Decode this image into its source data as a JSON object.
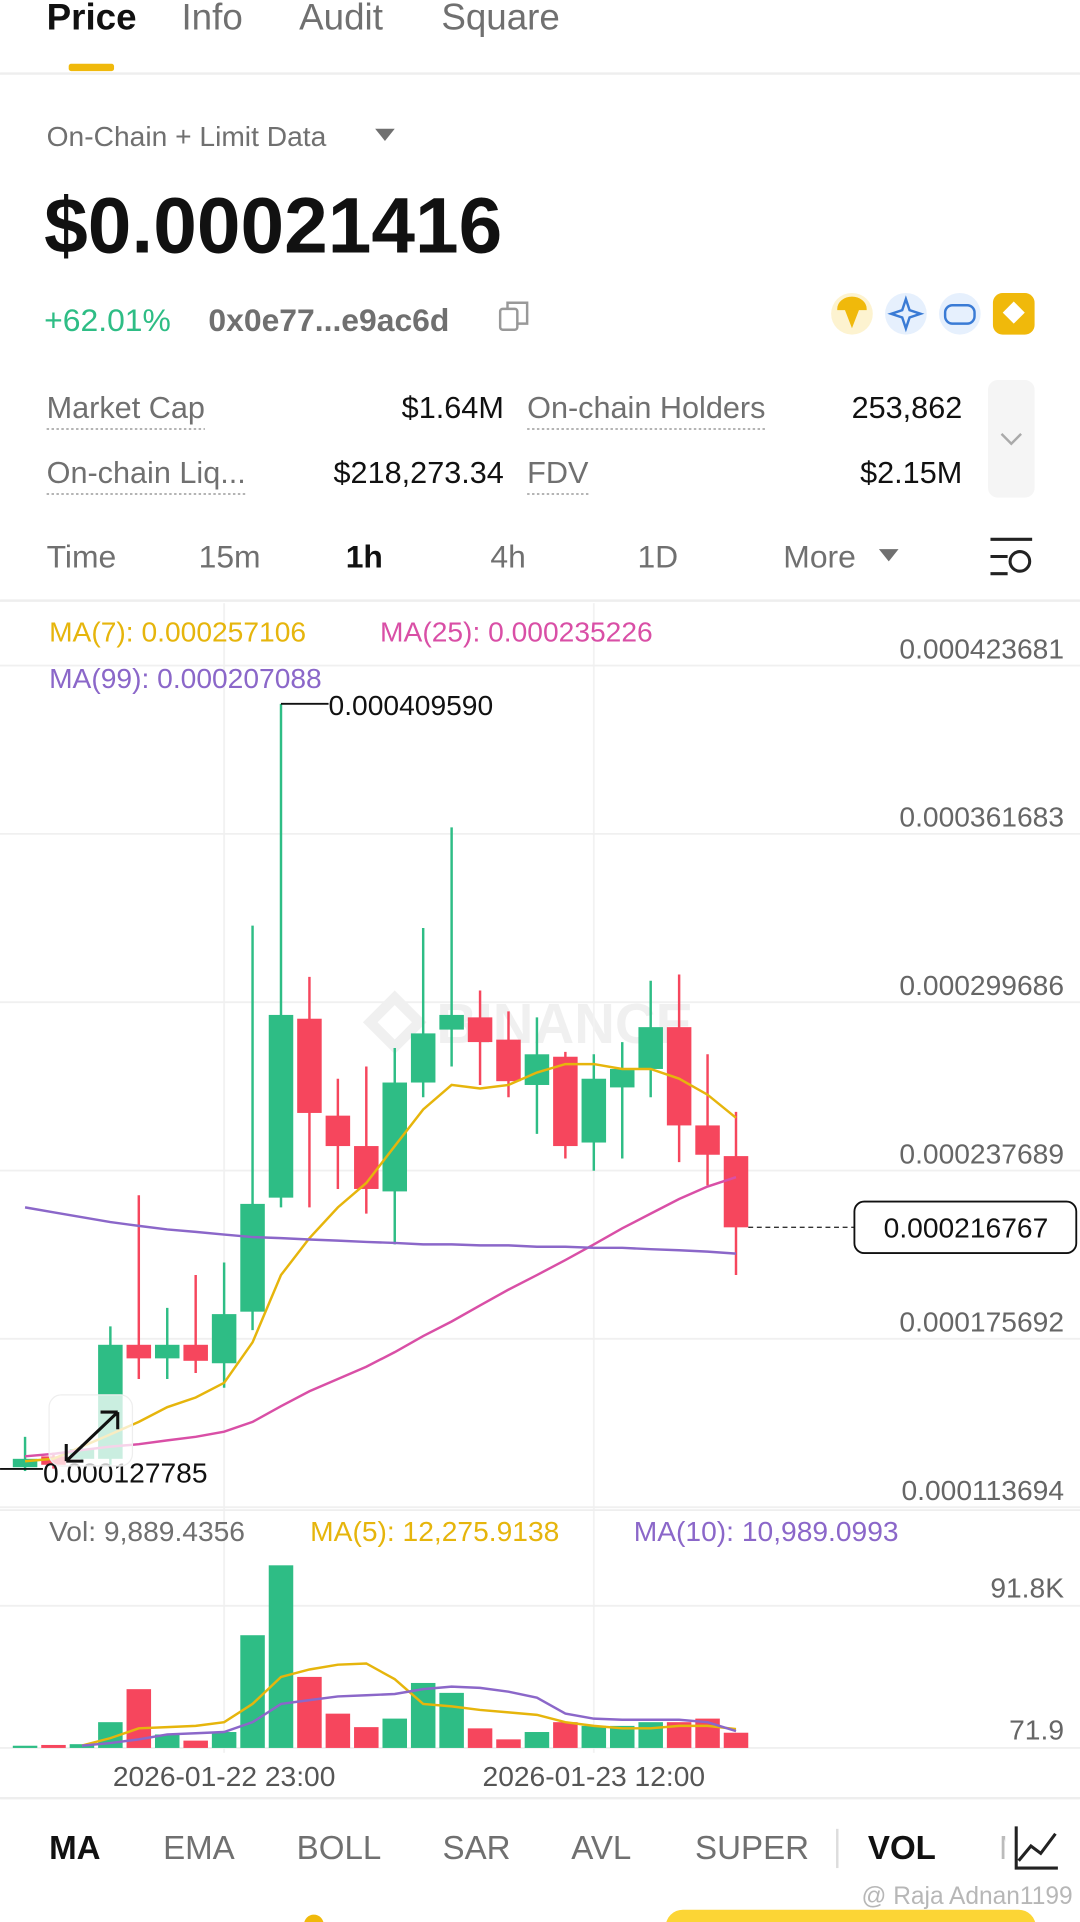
{
  "tabs": [
    "Price",
    "Info",
    "Audit",
    "Square"
  ],
  "data_source": "On-Chain + Limit Data",
  "price": "$0.00021416",
  "change": "+62.01%",
  "address": "0x0e77...e9ac6d",
  "stats": [
    {
      "label": "Market Cap",
      "value": "$1.64M"
    },
    {
      "label": "On-chain Holders",
      "value": "253,862"
    },
    {
      "label": "On-chain Liq...",
      "value": "$218,273.34"
    },
    {
      "label": "FDV",
      "value": "$2.15M"
    }
  ],
  "intervals": [
    "Time",
    "15m",
    "1h",
    "4h",
    "1D",
    "More"
  ],
  "indicators": [
    "MA",
    "EMA",
    "BOLL",
    "SAR",
    "AVL",
    "SUPER",
    "VOL",
    "M"
  ],
  "watermark": "@ Raja Adnan1199",
  "chart_data": [
    {
      "type": "candlestick",
      "watermark": "BINANCE",
      "up_color": "#2ebd85",
      "down_color": "#f6465d",
      "open": [
        0.0001284,
        0.0001324,
        0.0001315,
        0.0001315,
        0.0001735,
        0.0001685,
        0.0001735,
        0.0001667,
        0.0001857,
        0.0002277,
        0.0002936,
        0.0002579,
        0.0002467,
        0.00023,
        0.0002701,
        0.0002896,
        0.0002941,
        0.0002859,
        0.0002692,
        0.0002796,
        0.000248,
        0.0002683,
        0.0002751,
        0.0002905,
        0.0002543,
        0.000243
      ],
      "high": [
        0.0001396,
        0.0001338,
        0.0001369,
        0.0001803,
        0.0002286,
        0.0001871,
        0.0001992,
        0.0002038,
        0.0003279,
        0.00040959,
        0.000309,
        0.0002715,
        0.000276,
        0.0002828,
        0.000327,
        0.0003641,
        0.000304,
        0.0002963,
        0.0002941,
        0.0002814,
        0.0002805,
        0.000285,
        0.0003076,
        0.0003099,
        0.0002805,
        0.0002593
      ],
      "low": [
        0.000127,
        0.0001279,
        0.0001302,
        0.0001293,
        0.0001609,
        0.0001609,
        0.0001631,
        0.0001577,
        0.0001789,
        0.0002241,
        0.0002241,
        0.0002309,
        0.0002218,
        0.0002105,
        0.0002647,
        0.000276,
        0.0002692,
        0.0002647,
        0.0002512,
        0.0002421,
        0.0002376,
        0.0002421,
        0.0002647,
        0.0002408,
        0.0002322,
        0.0001992
      ],
      "close": [
        0.0001315,
        0.0001293,
        0.0001351,
        0.0001735,
        0.0001685,
        0.0001735,
        0.0001676,
        0.0001848,
        0.0002254,
        0.000295,
        0.0002589,
        0.0002467,
        0.0002309,
        0.0002701,
        0.0002882,
        0.000295,
        0.000285,
        0.0002706,
        0.0002805,
        0.0002467,
        0.0002715,
        0.0002751,
        0.0002905,
        0.0002543,
        0.0002435,
        0.000216767
      ],
      "lines": [
        {
          "label": "MA(7): 0.000257106",
          "color": "#e6b50c",
          "values": [
            0.0001306,
            0.0001315,
            0.000136,
            0.0001405,
            0.0001451,
            0.0001505,
            0.0001541,
            0.0001595,
            0.0001744,
            0.0001992,
            0.0002128,
            0.0002241,
            0.0002331,
            0.0002467,
            0.0002602,
            0.0002692,
            0.0002679,
            0.0002692,
            0.0002738,
            0.0002769,
            0.0002769,
            0.0002751,
            0.0002751,
            0.0002715,
            0.0002656,
            0.000257106
          ]
        },
        {
          "label": "MA(25): 0.000235226",
          "color": "#d94fa6",
          "values": [
            0.0001324,
            0.0001333,
            0.0001347,
            0.000136,
            0.0001369,
            0.0001383,
            0.0001396,
            0.0001415,
            0.0001451,
            0.0001509,
            0.0001564,
            0.0001609,
            0.0001654,
            0.0001708,
            0.0001767,
            0.0001821,
            0.000188,
            0.0001938,
            0.0001992,
            0.0002047,
            0.0002105,
            0.0002164,
            0.0002218,
            0.0002272,
            0.0002318,
            0.000235226
          ]
        },
        {
          "label": "MA(99): 0.000207088",
          "color": "#8b67c9",
          "values": [
            0.0002241,
            0.0002223,
            0.0002205,
            0.0002187,
            0.0002173,
            0.000216,
            0.0002151,
            0.0002141,
            0.0002132,
            0.0002128,
            0.0002123,
            0.0002119,
            0.0002114,
            0.000211,
            0.0002105,
            0.0002105,
            0.0002101,
            0.0002101,
            0.0002096,
            0.0002096,
            0.0002092,
            0.0002092,
            0.0002087,
            0.0002083,
            0.0002078,
            0.000207088
          ]
        }
      ],
      "ylim": [
        0.0001135,
        0.0004476
      ],
      "yticks": [
        0.000423681,
        0.000361683,
        0.000299686,
        0.000237689,
        0.000175692,
        0.000113694
      ],
      "high_label": {
        "value": 0.00040959,
        "label": "0.000409590"
      },
      "low_label": 0.000127785,
      "last_price": 0.000216767
    },
    {
      "type": "bar",
      "label": "Vol: 9,889.4356",
      "categories": [
        null,
        null,
        null,
        null,
        null,
        null,
        null,
        "2026-01-22 23:00",
        null,
        null,
        null,
        null,
        null,
        null,
        null,
        null,
        null,
        null,
        null,
        null,
        "2026-01-23 12:00",
        null,
        null,
        null,
        null,
        null
      ],
      "values": [
        1500,
        2000,
        2500,
        16700,
        38000,
        8770,
        4800,
        10350,
        72800,
        117900,
        45900,
        22200,
        13500,
        19000,
        42000,
        35600,
        12700,
        5600,
        10350,
        16700,
        14300,
        14300,
        16700,
        16700,
        19000,
        9889.4356
      ],
      "lines": [
        {
          "label": "MA(5): 12,275.9138",
          "color": "#e6b50c",
          "values": [
            null,
            null,
            1600,
            6400,
            12700,
            13500,
            14300,
            16700,
            28500,
            45900,
            50700,
            53800,
            54600,
            44400,
            28500,
            26900,
            24600,
            23000,
            21400,
            16700,
            14300,
            12700,
            12700,
            14300,
            14300,
            12275.9138
          ]
        },
        {
          "label": "MA(10): 10,989.0993",
          "color": "#8b67c9",
          "values": [
            null,
            null,
            1600,
            3200,
            5600,
            8800,
            9600,
            10350,
            16700,
            28500,
            30900,
            33300,
            34100,
            34900,
            38000,
            39600,
            38800,
            36400,
            32500,
            22200,
            19000,
            18300,
            18300,
            18300,
            16700,
            10989.0993
          ]
        }
      ],
      "ylim": [
        71.9,
        127400
      ],
      "yticks": [
        {
          "value": 91800,
          "label": "91.8K"
        },
        71.9
      ]
    }
  ]
}
